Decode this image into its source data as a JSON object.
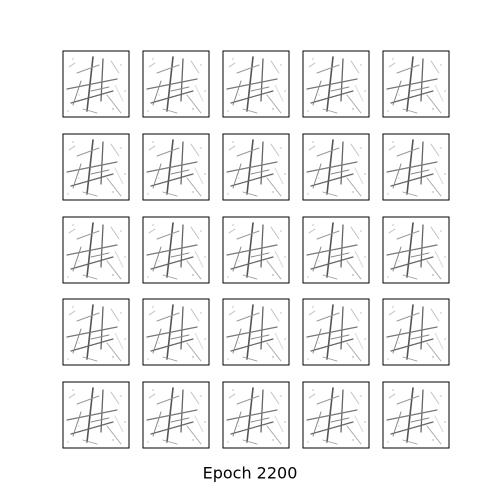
{
  "caption": "Epoch 2200"
}
